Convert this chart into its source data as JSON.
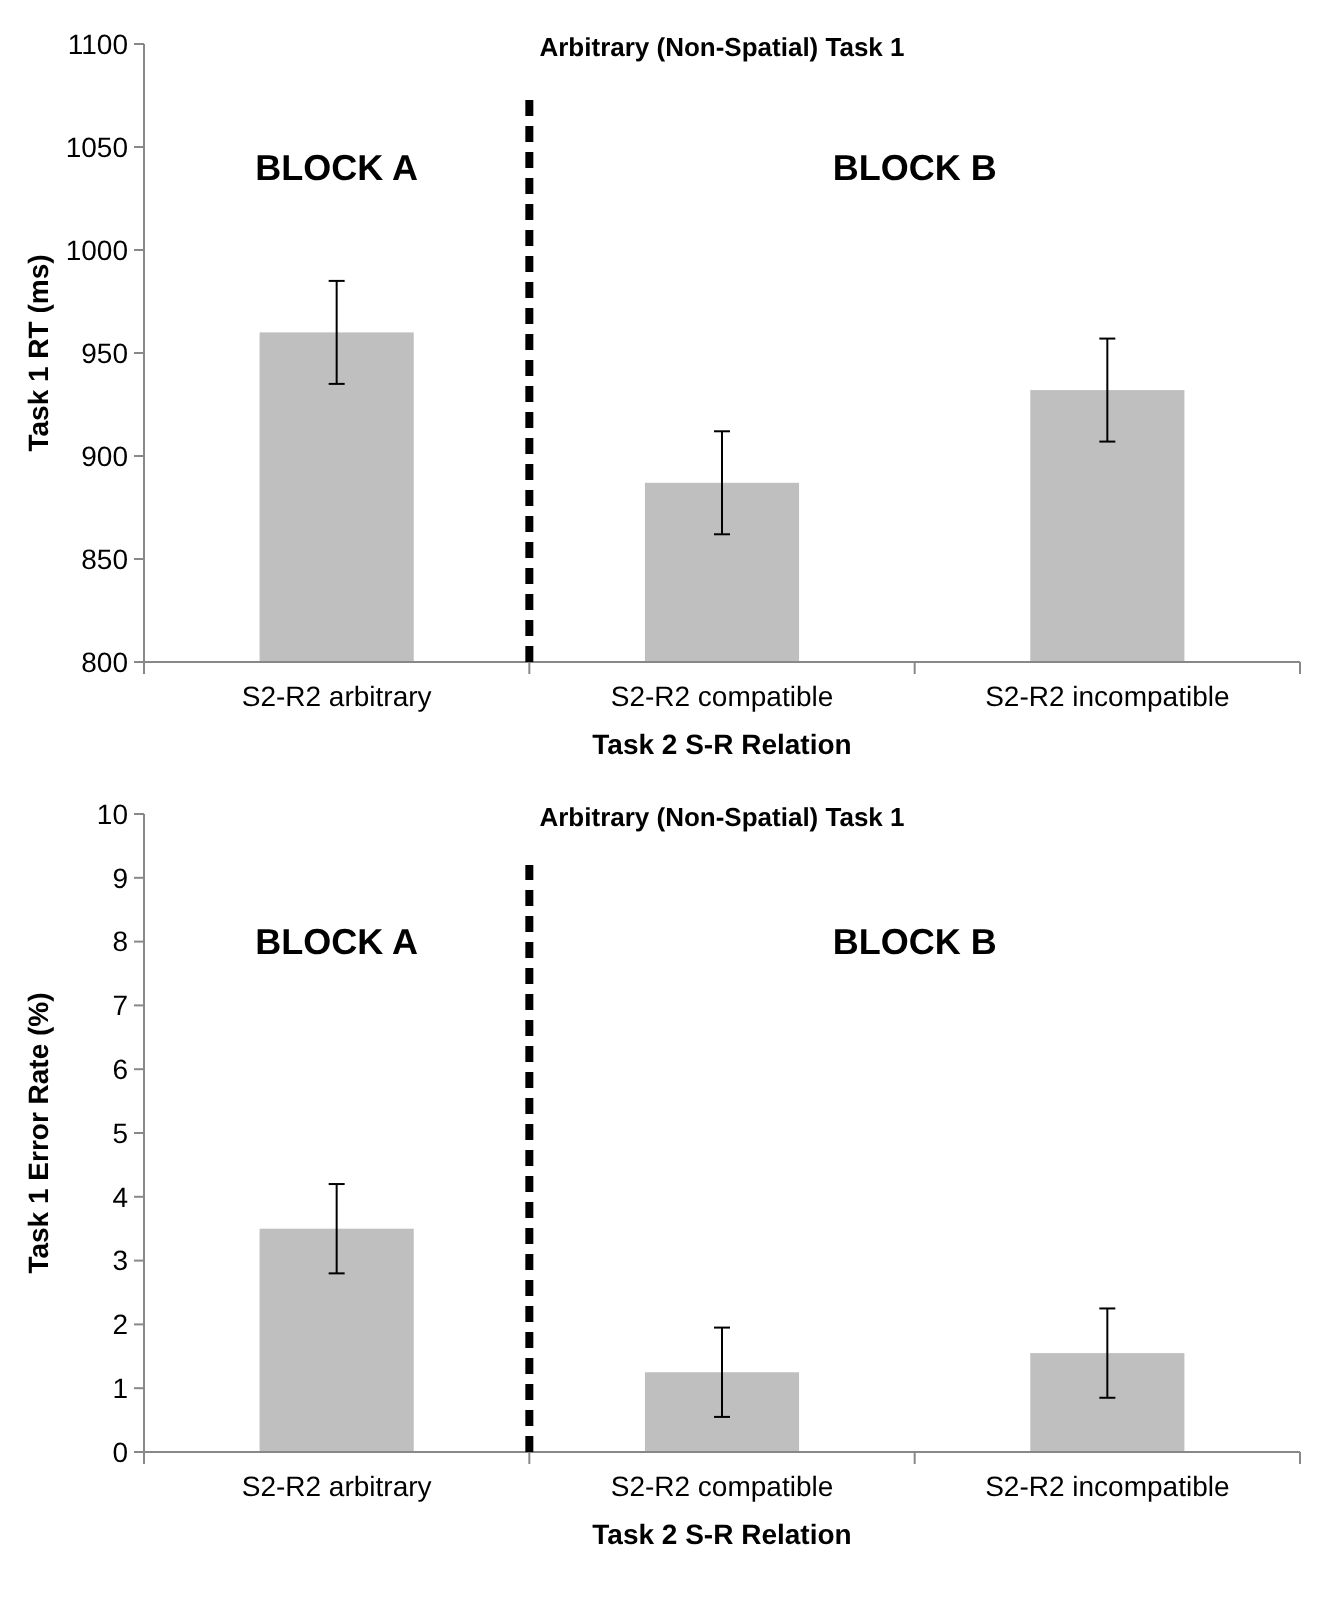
{
  "chart_data": [
    {
      "type": "bar",
      "title": "Arbitrary (Non-Spatial) Task 1",
      "xlabel": "Task 2 S-R Relation",
      "ylabel": "Task 1 RT (ms)",
      "categories": [
        "S2-R2 arbitrary",
        "S2-R2 compatible",
        "S2-R2 incompatible"
      ],
      "values": [
        960,
        887,
        932
      ],
      "errors": [
        25,
        25,
        25
      ],
      "color": "#bfbfbf",
      "ylim": [
        800,
        1100
      ],
      "yticks": [
        800,
        850,
        900,
        950,
        1000,
        1050,
        1100
      ],
      "grid": false,
      "annotations": [
        "BLOCK A",
        "BLOCK B"
      ]
    },
    {
      "type": "bar",
      "title": "Arbitrary (Non-Spatial) Task 1",
      "xlabel": "Task 2 S-R Relation",
      "ylabel": "Task 1 Error Rate (%)",
      "categories": [
        "S2-R2 arbitrary",
        "S2-R2 compatible",
        "S2-R2 incompatible"
      ],
      "values": [
        3.5,
        1.25,
        1.55
      ],
      "errors": [
        0.7,
        0.7,
        0.7
      ],
      "color": "#bfbfbf",
      "ylim": [
        0,
        10
      ],
      "yticks": [
        0,
        1,
        2,
        3,
        4,
        5,
        6,
        7,
        8,
        9,
        10
      ],
      "grid": false,
      "annotations": [
        "BLOCK A",
        "BLOCK B"
      ]
    }
  ]
}
